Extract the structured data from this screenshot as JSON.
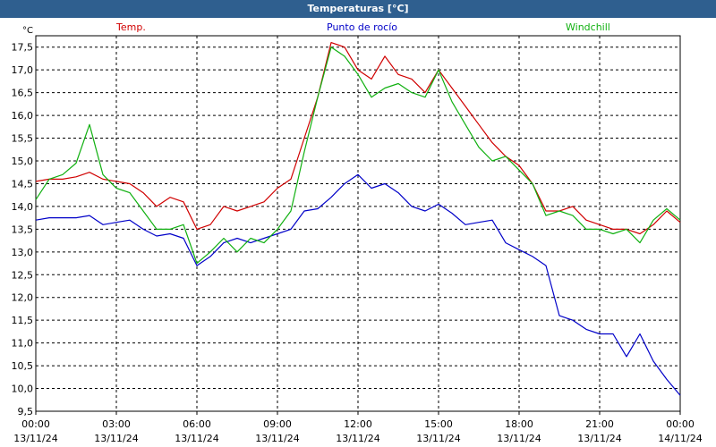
{
  "window": {
    "title": "Temperaturas [°C]"
  },
  "colors": {
    "titlebar": "#2f5f8f",
    "temp": "#d00000",
    "dew": "#0000c8",
    "windchill": "#10b010"
  },
  "chart_data": {
    "type": "line",
    "title": "Temperaturas [°C]",
    "ylabel": "°C",
    "ylim": [
      9.5,
      17.75
    ],
    "grid": true,
    "legend_placement": "top",
    "yticks": [
      "9,5",
      "10,0",
      "10,5",
      "11,0",
      "11,5",
      "12,0",
      "12,5",
      "13,0",
      "13,5",
      "14,0",
      "14,5",
      "15,0",
      "15,5",
      "16,0",
      "16,5",
      "17,0",
      "17,5"
    ],
    "xticks": [
      {
        "time": "00:00",
        "date": "13/11/24"
      },
      {
        "time": "03:00",
        "date": "13/11/24"
      },
      {
        "time": "06:00",
        "date": "13/11/24"
      },
      {
        "time": "09:00",
        "date": "13/11/24"
      },
      {
        "time": "12:00",
        "date": "13/11/24"
      },
      {
        "time": "15:00",
        "date": "13/11/24"
      },
      {
        "time": "18:00",
        "date": "13/11/24"
      },
      {
        "time": "21:00",
        "date": "13/11/24"
      },
      {
        "time": "00:00",
        "date": "14/11/24"
      }
    ],
    "x_hours": [
      0,
      0.5,
      1,
      1.5,
      2,
      2.5,
      3,
      3.5,
      4,
      4.5,
      5,
      5.5,
      6,
      6.5,
      7,
      7.5,
      8,
      8.5,
      9,
      9.5,
      10,
      10.5,
      11,
      11.5,
      12,
      12.5,
      13,
      13.5,
      14,
      14.5,
      15,
      15.5,
      16,
      16.5,
      17,
      17.5,
      18,
      18.5,
      19,
      19.5,
      20,
      20.5,
      21,
      21.5,
      22,
      22.5,
      23,
      23.5,
      24
    ],
    "series": [
      {
        "name": "Temp.",
        "color": "#d00000",
        "values": [
          14.55,
          14.6,
          14.6,
          14.65,
          14.75,
          14.6,
          14.55,
          14.5,
          14.3,
          14.0,
          14.2,
          14.1,
          13.5,
          13.6,
          14.0,
          13.9,
          14.0,
          14.1,
          14.4,
          14.6,
          15.5,
          16.4,
          17.6,
          17.5,
          17.0,
          16.8,
          17.3,
          16.9,
          16.8,
          16.5,
          17.0,
          16.6,
          16.2,
          15.8,
          15.4,
          15.1,
          14.9,
          14.5,
          13.9,
          13.9,
          14.0,
          13.7,
          13.6,
          13.5,
          13.5,
          13.4,
          13.6,
          13.9,
          13.65
        ]
      },
      {
        "name": "Punto de rocío",
        "color": "#0000c8",
        "values": [
          13.7,
          13.75,
          13.75,
          13.75,
          13.8,
          13.6,
          13.65,
          13.7,
          13.5,
          13.35,
          13.4,
          13.3,
          12.7,
          12.9,
          13.2,
          13.3,
          13.2,
          13.3,
          13.4,
          13.5,
          13.9,
          13.95,
          14.2,
          14.5,
          14.7,
          14.4,
          14.5,
          14.3,
          14.0,
          13.9,
          14.05,
          13.85,
          13.6,
          13.65,
          13.7,
          13.2,
          13.05,
          12.9,
          12.7,
          11.6,
          11.5,
          11.3,
          11.2,
          11.2,
          10.7,
          11.2,
          10.6,
          10.2,
          9.85
        ]
      },
      {
        "name": "Windchill",
        "color": "#10b010",
        "values": [
          14.15,
          14.6,
          14.7,
          14.95,
          15.8,
          14.7,
          14.4,
          14.3,
          13.9,
          13.5,
          13.5,
          13.6,
          12.75,
          13.0,
          13.3,
          13.0,
          13.3,
          13.2,
          13.5,
          13.9,
          15.2,
          16.4,
          17.5,
          17.3,
          16.9,
          16.4,
          16.6,
          16.7,
          16.5,
          16.4,
          17.0,
          16.3,
          15.8,
          15.3,
          15.0,
          15.1,
          14.8,
          14.5,
          13.8,
          13.9,
          13.8,
          13.5,
          13.5,
          13.4,
          13.5,
          13.2,
          13.7,
          13.95,
          13.7
        ]
      }
    ]
  }
}
